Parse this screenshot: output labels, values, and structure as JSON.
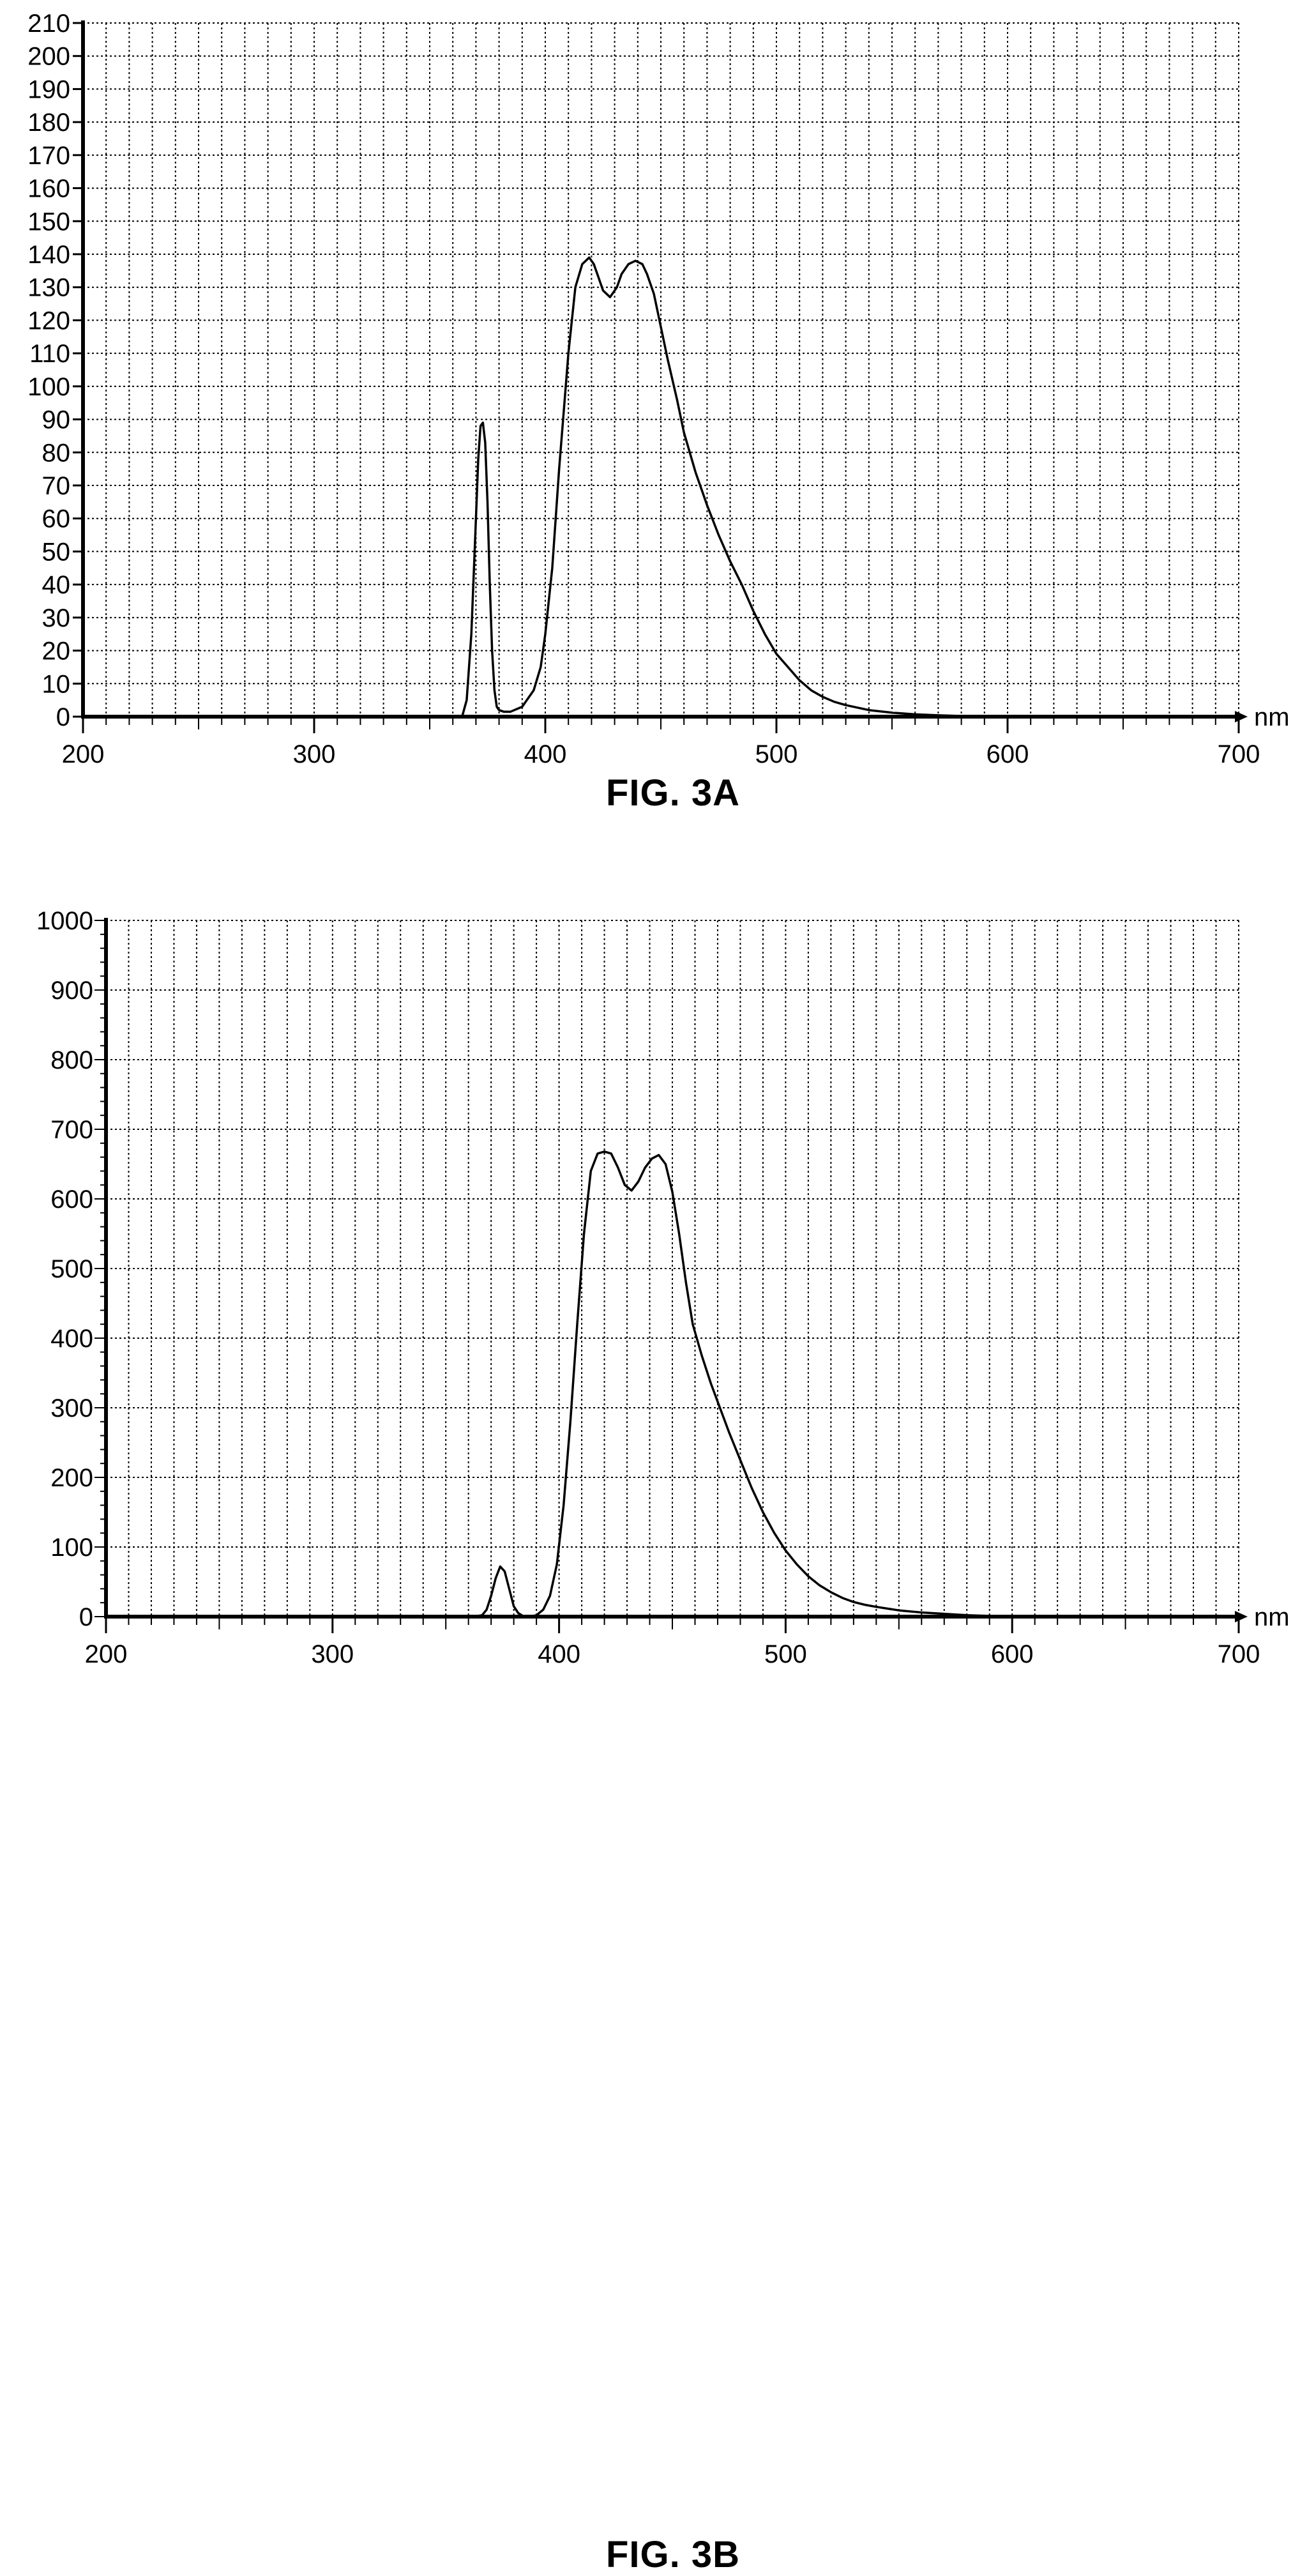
{
  "figures": [
    {
      "caption": "FIG. 3A",
      "chart_data": {
        "type": "line",
        "title": "",
        "xlabel": "nm",
        "ylabel": "",
        "xlim": [
          200,
          700
        ],
        "ylim": [
          0,
          210
        ],
        "x_major_ticks": [
          200,
          300,
          400,
          500,
          600,
          700
        ],
        "x_minor_step": 10,
        "y_major_ticks": [
          0,
          10,
          20,
          30,
          40,
          50,
          60,
          70,
          80,
          90,
          100,
          110,
          120,
          130,
          140,
          150,
          160,
          170,
          180,
          190,
          200,
          210
        ],
        "grid": true,
        "grid_style": "dotted",
        "line_color": "#000000",
        "series": [
          {
            "x": [
              200,
              360,
              364,
              366,
              368,
              370,
              371,
              372,
              373,
              374,
              375,
              376,
              377,
              378,
              379,
              380,
              382,
              385,
              390,
              395,
              398,
              400,
              403,
              406,
              410,
              413,
              416,
              419,
              421,
              423,
              425,
              428,
              431,
              433,
              436,
              439,
              442,
              444,
              447,
              450,
              453,
              457,
              460,
              465,
              470,
              475,
              480,
              485,
              490,
              495,
              500,
              505,
              510,
              515,
              520,
              525,
              530,
              540,
              550,
              560,
              570,
              580,
              590,
              600,
              700
            ],
            "y": [
              0,
              0,
              0,
              5,
              25,
              60,
              78,
              88,
              89,
              83,
              65,
              40,
              20,
              8,
              3,
              2,
              1.5,
              1.5,
              3,
              8,
              15,
              25,
              45,
              75,
              110,
              130,
              137,
              139,
              137,
              133,
              129,
              127,
              130,
              134,
              137,
              138,
              137,
              134,
              128,
              118,
              108,
              96,
              86,
              74,
              64,
              55,
              47,
              40,
              32,
              25,
              19,
              15,
              11,
              8,
              6,
              4.5,
              3.5,
              2,
              1.2,
              0.7,
              0.4,
              0.2,
              0.1,
              0,
              0
            ]
          }
        ]
      }
    },
    {
      "caption": "FIG. 3B",
      "chart_data": {
        "type": "line",
        "title": "",
        "xlabel": "nm",
        "ylabel": "",
        "xlim": [
          200,
          700
        ],
        "ylim": [
          0,
          1000
        ],
        "x_major_ticks": [
          200,
          300,
          400,
          500,
          600,
          700
        ],
        "x_minor_step": 10,
        "y_major_ticks": [
          0,
          100,
          200,
          300,
          400,
          500,
          600,
          700,
          800,
          900,
          1000
        ],
        "y_minor_step": 20,
        "grid": true,
        "grid_style": "dotted",
        "line_color": "#000000",
        "series": [
          {
            "x": [
              200,
              362,
              366,
              368,
              370,
              372,
              374,
              376,
              378,
              380,
              382,
              384,
              387,
              390,
              393,
              396,
              399,
              402,
              405,
              408,
              411,
              414,
              417,
              420,
              423,
              426,
              429,
              432,
              435,
              438,
              441,
              444,
              447,
              450,
              453,
              456,
              459,
              463,
              467,
              471,
              475,
              480,
              485,
              490,
              495,
              500,
              505,
              510,
              515,
              520,
              525,
              530,
              535,
              540,
              550,
              560,
              570,
              580,
              590,
              600,
              700
            ],
            "y": [
              0,
              0,
              2,
              10,
              30,
              55,
              72,
              65,
              40,
              15,
              5,
              1,
              0,
              2,
              10,
              30,
              75,
              160,
              280,
              420,
              550,
              640,
              665,
              668,
              665,
              645,
              620,
              612,
              625,
              645,
              658,
              663,
              650,
              610,
              550,
              480,
              420,
              375,
              335,
              300,
              265,
              225,
              185,
              150,
              120,
              95,
              75,
              58,
              45,
              35,
              27,
              21,
              17,
              14,
              9,
              6,
              4,
              2,
              1,
              0,
              0
            ]
          }
        ]
      }
    }
  ]
}
